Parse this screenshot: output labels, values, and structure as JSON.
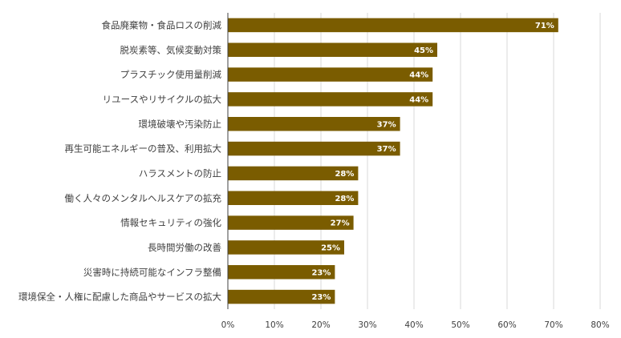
{
  "chart_data": {
    "type": "bar",
    "orientation": "horizontal",
    "categories": [
      "食品廃棄物・食品ロスの削減",
      "脱炭素等、気候変動対策",
      "プラスチック使用量削減",
      "リユースやリサイクルの拡大",
      "環境破壊や汚染防止",
      "再生可能エネルギーの普及、利用拡大",
      "ハラスメントの防止",
      "働く人々のメンタルヘルスケアの拡充",
      "情報セキュリティの強化",
      "長時間労働の改善",
      "災害時に持続可能なインフラ整備",
      "環境保全・人権に配慮した商品やサービスの拡大"
    ],
    "values": [
      71,
      45,
      44,
      44,
      37,
      37,
      28,
      28,
      27,
      25,
      23,
      23
    ],
    "value_labels": [
      "71%",
      "45%",
      "44%",
      "44%",
      "37%",
      "37%",
      "28%",
      "28%",
      "27%",
      "25%",
      "23%",
      "23%"
    ],
    "x_ticks": [
      "0%",
      "10%",
      "20%",
      "30%",
      "40%",
      "50%",
      "60%",
      "70%",
      "80%"
    ],
    "xlim": [
      0,
      80
    ],
    "grid": "vertical",
    "legend": "none",
    "title": "",
    "xlabel": "",
    "ylabel": "",
    "colors": {
      "bar": "#7a5c00",
      "grid": "#d9d9d9",
      "axis": "#404040",
      "bar_label": "#ffffff"
    }
  }
}
